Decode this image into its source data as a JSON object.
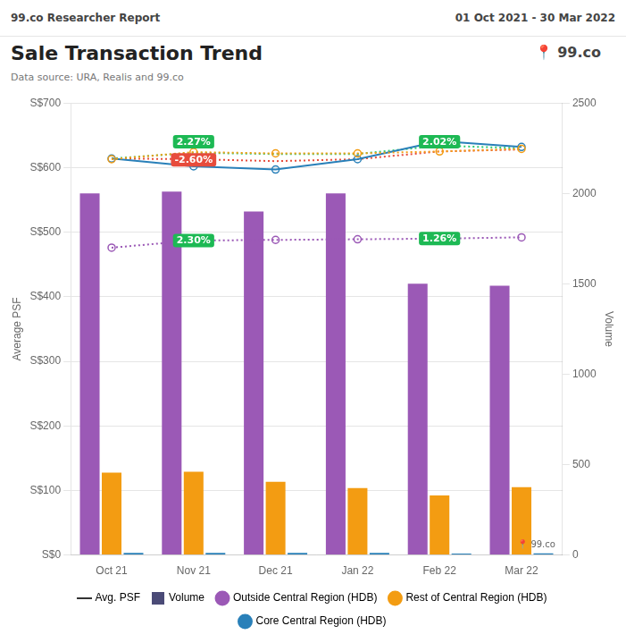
{
  "chart_data": {
    "type": "bar",
    "header_left": "99.co Researcher Report",
    "header_right": "01 Oct 2021 - 30 Mar 2022",
    "title": "Sale Transaction Trend",
    "subtitle": "Data source: URA, Realis and 99.co",
    "logo": "📍 99.co",
    "watermark": "📍 99.co",
    "categories": [
      "Oct 21",
      "Nov 21",
      "Dec 21",
      "Jan 22",
      "Feb 22",
      "Mar 22"
    ],
    "series": [
      {
        "name": "Outside Central Region (HDB)",
        "type": "bar",
        "axis": "y2",
        "color": "#9B59B6",
        "values": [
          2000,
          2010,
          1900,
          2000,
          1500,
          1490
        ]
      },
      {
        "name": "Rest of Central Region (HDB)",
        "type": "bar",
        "axis": "y2",
        "color": "#F39C12",
        "values": [
          455,
          460,
          405,
          370,
          330,
          375
        ]
      },
      {
        "name": "Core Central Region (HDB)",
        "type": "bar",
        "axis": "y2",
        "color": "#2980B9",
        "values": [
          12,
          12,
          12,
          12,
          8,
          9
        ]
      },
      {
        "type": "line",
        "axis": "y",
        "color": "#9B59B6",
        "marker": "circle",
        "line_style": "dotted",
        "values": [
          476,
          487,
          488,
          489,
          490,
          492
        ]
      },
      {
        "type": "line",
        "axis": "y",
        "color": "#F39C12",
        "marker": "circle",
        "line_style": "dotted",
        "values": [
          613,
          624,
          622,
          622,
          625,
          629
        ]
      },
      {
        "type": "line",
        "axis": "y",
        "color": "#2980B9",
        "marker": "circle",
        "line_style": "solid",
        "values": [
          614,
          602,
          597,
          613,
          641,
          632
        ]
      },
      {
        "type": "line",
        "axis": "y",
        "color": "#2ECC71",
        "marker": "none",
        "line_style": "dotted",
        "values": [
          614,
          623,
          621,
          621,
          634,
          630
        ]
      },
      {
        "type": "line",
        "axis": "y",
        "color": "#E74C3C",
        "marker": "none",
        "line_style": "dotted",
        "values": [
          614,
          613,
          610,
          613,
          625,
          628
        ]
      }
    ],
    "ylabel": "Average PSF",
    "y2label": "Volume",
    "ylim": [
      0,
      700
    ],
    "yticks": [
      {
        "value": 0,
        "label": "S$0"
      },
      {
        "value": 100,
        "label": "S$100"
      },
      {
        "value": 200,
        "label": "S$200"
      },
      {
        "value": 300,
        "label": "S$300"
      },
      {
        "value": 400,
        "label": "S$400"
      },
      {
        "value": 500,
        "label": "S$500"
      },
      {
        "value": 600,
        "label": "S$600"
      },
      {
        "value": 700,
        "label": "S$700"
      }
    ],
    "y2lim": [
      0,
      2500
    ],
    "y2ticks": [
      0,
      500,
      1000,
      1500,
      2000,
      2500
    ],
    "grid": true,
    "legend": "bottom",
    "legend_keys": [
      {
        "name": "Avg. PSF",
        "color": "#333333",
        "marker": "line"
      },
      {
        "name": "Volume",
        "color": "#4B4B77",
        "marker": "rect"
      }
    ],
    "annotations": [
      {
        "text": "2.27%",
        "x": "Nov 21",
        "y": 640,
        "color": "#1DB954"
      },
      {
        "text": "-2.60%",
        "x": "Nov 21",
        "y": 612,
        "color": "#E74C3C"
      },
      {
        "text": "2.30%",
        "x": "Nov 21",
        "y": 487,
        "color": "#1DB954"
      },
      {
        "text": "2.02%",
        "x": "Feb 22",
        "y": 640,
        "color": "#1DB954"
      },
      {
        "text": "1.26%",
        "x": "Feb 22",
        "y": 490,
        "color": "#1DB954"
      }
    ]
  }
}
